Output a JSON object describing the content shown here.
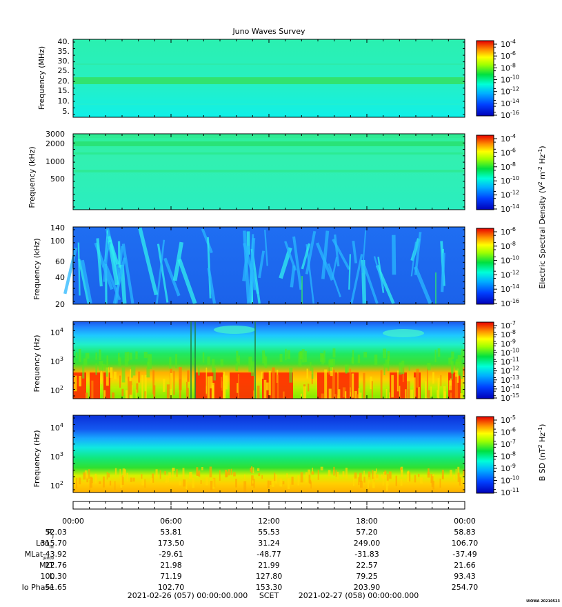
{
  "title": "Juno Waves Survey",
  "stamp": "UIOWA 20210523",
  "panels": [
    {
      "kind": "freq",
      "ylabel": "Frequency (MHz)",
      "yticks": [
        "40.",
        "35.",
        "30.",
        "25.",
        "20.",
        "15.",
        "10.",
        "5."
      ],
      "colorbar": {
        "ticks": [
          {
            "base": "10",
            "exp": "-4"
          },
          {
            "base": "10",
            "exp": "-6"
          },
          {
            "base": "10",
            "exp": "-8"
          },
          {
            "base": "10",
            "exp": "-10"
          },
          {
            "base": "10",
            "exp": "-12"
          },
          {
            "base": "10",
            "exp": "-14"
          },
          {
            "base": "10",
            "exp": "-16"
          }
        ]
      }
    },
    {
      "kind": "freq",
      "ylabel": "Frequency (kHz)",
      "yticks": [
        "3000",
        "2000",
        "1000",
        "500"
      ],
      "colorbar": {
        "ticks": [
          {
            "base": "10",
            "exp": "-4"
          },
          {
            "base": "10",
            "exp": "-6"
          },
          {
            "base": "10",
            "exp": "-8"
          },
          {
            "base": "10",
            "exp": "-10"
          },
          {
            "base": "10",
            "exp": "-12"
          },
          {
            "base": "10",
            "exp": "-14"
          }
        ]
      }
    },
    {
      "kind": "freq",
      "ylabel": "Frequency (kHz)",
      "yticks": [
        "140",
        "100",
        "60",
        "40",
        "20"
      ],
      "colorbar": {
        "ticks": [
          {
            "base": "10",
            "exp": "-6"
          },
          {
            "base": "10",
            "exp": "-8"
          },
          {
            "base": "10",
            "exp": "-10"
          },
          {
            "base": "10",
            "exp": "-12"
          },
          {
            "base": "10",
            "exp": "-14"
          },
          {
            "base": "10",
            "exp": "-16"
          }
        ]
      }
    },
    {
      "kind": "freq",
      "ylabel": "Frequency (Hz)",
      "yticks": [
        {
          "base": "10",
          "exp": "4"
        },
        {
          "base": "10",
          "exp": "3"
        },
        {
          "base": "10",
          "exp": "2"
        }
      ],
      "colorbar": {
        "ticks": [
          {
            "base": "10",
            "exp": "-7"
          },
          {
            "base": "10",
            "exp": "-8"
          },
          {
            "base": "10",
            "exp": "-9"
          },
          {
            "base": "10",
            "exp": "-10"
          },
          {
            "base": "10",
            "exp": "-11"
          },
          {
            "base": "10",
            "exp": "-12"
          },
          {
            "base": "10",
            "exp": "-13"
          },
          {
            "base": "10",
            "exp": "-14"
          },
          {
            "base": "10",
            "exp": "-15"
          }
        ]
      }
    },
    {
      "kind": "freq",
      "ylabel": "Frequency (Hz)",
      "yticks": [
        {
          "base": "10",
          "exp": "4"
        },
        {
          "base": "10",
          "exp": "3"
        },
        {
          "base": "10",
          "exp": "2"
        }
      ],
      "colorbar": {
        "ticks": [
          {
            "base": "10",
            "exp": "-5"
          },
          {
            "base": "10",
            "exp": "-6"
          },
          {
            "base": "10",
            "exp": "-7"
          },
          {
            "base": "10",
            "exp": "-8"
          },
          {
            "base": "10",
            "exp": "-9"
          },
          {
            "base": "10",
            "exp": "-10"
          },
          {
            "base": "10",
            "exp": "-11"
          }
        ]
      }
    }
  ],
  "colorbar_labels": {
    "electric": {
      "prefix": "Electric Spectral Density (V",
      "sup1": "2",
      "mid": " m",
      "sup2": "-2",
      "mid2": " Hz",
      "sup3": "-1",
      "suffix": ")"
    },
    "magnetic": {
      "prefix": "B SD (nT",
      "sup1": "2",
      "mid": " Hz",
      "sup2": "-1",
      "suffix": ")"
    }
  },
  "time_ticks": [
    "00:00",
    "06:00",
    "12:00",
    "18:00",
    "00:00"
  ],
  "ephemeris": [
    {
      "label": "R",
      "sub": "J",
      "values": [
        "52.03",
        "53.81",
        "55.53",
        "57.20",
        "58.83"
      ]
    },
    {
      "label": "Lon",
      "sub": "III",
      "values": [
        "315.70",
        "173.50",
        "31.24",
        "249.00",
        "106.70"
      ]
    },
    {
      "label": "MLat",
      "sub": "JRM09",
      "values": [
        "-43.92",
        "-29.61",
        "-48.77",
        "-31.83",
        "-37.49"
      ]
    },
    {
      "label": "MLT",
      "sub": "",
      "values": [
        "22.76",
        "21.98",
        "21.99",
        "22.57",
        "21.66"
      ]
    },
    {
      "label": "L",
      "sub": "",
      "values": [
        "100.30",
        "71.19",
        "127.80",
        "79.25",
        "93.43"
      ]
    },
    {
      "label": "Io Phase",
      "sub": "",
      "values": [
        "51.65",
        "102.70",
        "153.30",
        "203.90",
        "254.70"
      ]
    }
  ],
  "footer": {
    "start": "2021-02-26 (057) 00:00:00.000",
    "mid": "SCET",
    "end": "2021-02-27 (058) 00:00:00.000"
  },
  "chart_data": {
    "type": "heatmap",
    "title": "Juno Waves Survey",
    "x": [
      "00:00",
      "06:00",
      "12:00",
      "18:00",
      "00:00"
    ],
    "xlabel": "SCET",
    "series": [
      {
        "ylabel": "Frequency (MHz)",
        "ylim": [
          3,
          41
        ],
        "zlim_exp": [
          -17,
          -4
        ]
      },
      {
        "ylabel": "Frequency (kHz)",
        "ylim": [
          150,
          3200
        ],
        "yscale": "log",
        "zlim_exp": [
          -15,
          -4
        ]
      },
      {
        "ylabel": "Frequency (kHz)",
        "ylim": [
          20,
          140
        ],
        "yscale": "log",
        "zlim_exp": [
          -16,
          -6
        ]
      },
      {
        "ylabel": "Frequency (Hz)",
        "ylim": [
          50,
          20000
        ],
        "yscale": "log",
        "zlim_exp": [
          -15,
          -7
        ]
      },
      {
        "ylabel": "Frequency (Hz)",
        "ylim": [
          50,
          20000
        ],
        "yscale": "log",
        "zlim_exp": [
          -11,
          -5
        ]
      }
    ],
    "colors": {
      "low": "#0000c0",
      "mid": "#00e070",
      "high": "#e00000"
    }
  }
}
